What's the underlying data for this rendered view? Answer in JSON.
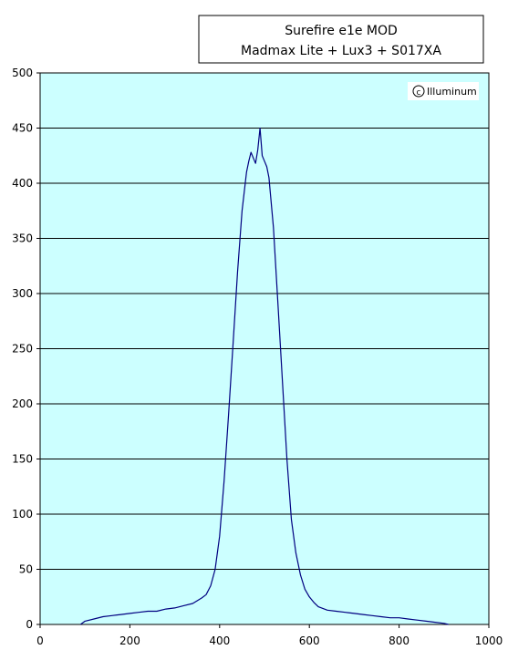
{
  "chart_data": {
    "type": "line",
    "title_lines": [
      "Surefire e1e MOD",
      "Madmax Lite + Lux3 + S017XA"
    ],
    "watermark": "Illuminum",
    "xlim": [
      0,
      1000
    ],
    "ylim": [
      0,
      500
    ],
    "x_ticks": [
      0,
      200,
      400,
      600,
      800,
      1000
    ],
    "y_ticks": [
      0,
      50,
      100,
      150,
      200,
      250,
      300,
      350,
      400,
      450,
      500
    ],
    "grid": "horizontal",
    "plot_background": "#ccffff",
    "line_color": "#000080",
    "series": [
      {
        "x": [
          90,
          100,
          120,
          140,
          160,
          180,
          200,
          220,
          240,
          260,
          280,
          300,
          320,
          340,
          360,
          370,
          380,
          390,
          400,
          410,
          420,
          430,
          440,
          450,
          460,
          465,
          470,
          475,
          480,
          485,
          490,
          495,
          500,
          505,
          510,
          520,
          530,
          540,
          550,
          560,
          570,
          580,
          590,
          600,
          610,
          620,
          640,
          660,
          680,
          700,
          720,
          740,
          760,
          780,
          800,
          820,
          840,
          860,
          880,
          900,
          910
        ],
        "y": [
          0,
          3,
          5,
          7,
          8,
          9,
          10,
          11,
          12,
          12,
          14,
          15,
          17,
          19,
          24,
          27,
          35,
          50,
          80,
          130,
          190,
          255,
          320,
          375,
          410,
          420,
          428,
          423,
          418,
          430,
          450,
          425,
          420,
          415,
          405,
          360,
          290,
          220,
          150,
          95,
          65,
          45,
          32,
          25,
          20,
          16,
          13,
          12,
          11,
          10,
          9,
          8,
          7,
          6,
          6,
          5,
          4,
          3,
          2,
          1,
          0
        ]
      }
    ]
  }
}
